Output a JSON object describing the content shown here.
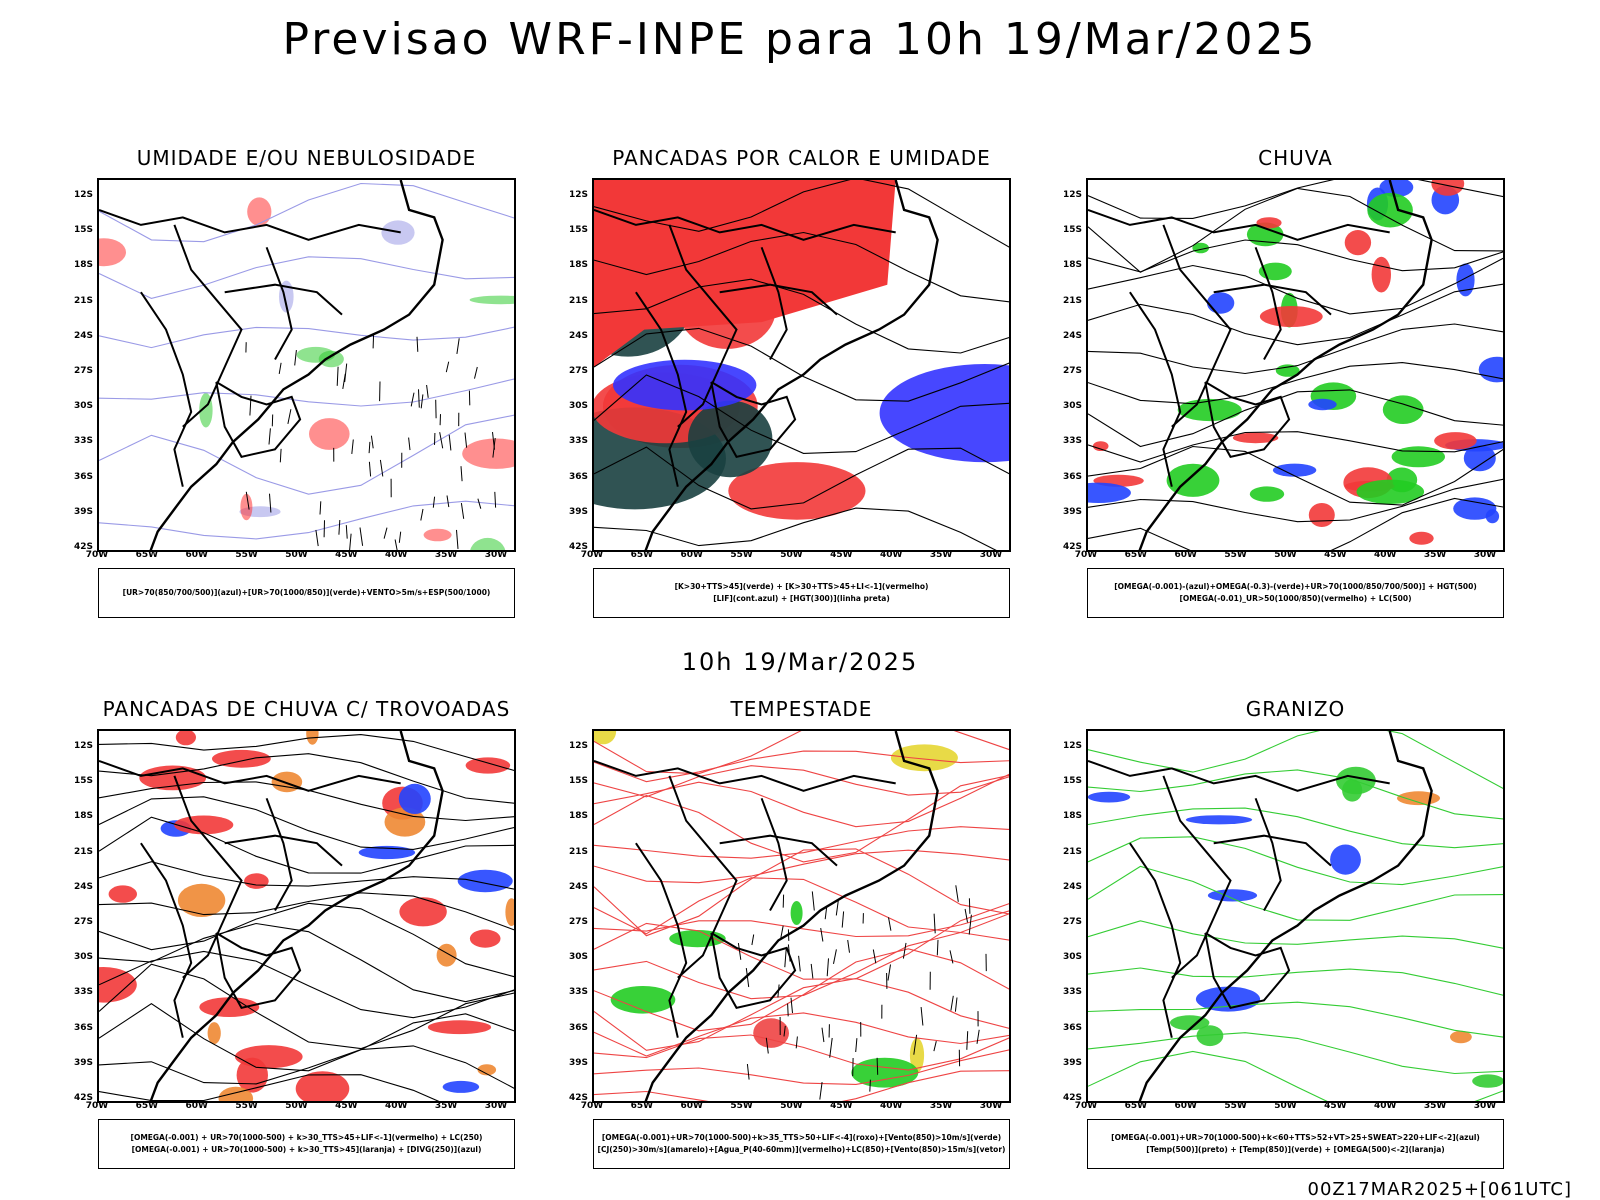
{
  "header": {
    "title": "Previsao WRF-INPE  para 10h 19/Mar/2025"
  },
  "middle_title": "10h 19/Mar/2025",
  "footer": "00Z17MAR2025+[061UTC]",
  "axes": {
    "lat_labels": [
      "12S",
      "15S",
      "18S",
      "21S",
      "24S",
      "27S",
      "30S",
      "33S",
      "36S",
      "39S",
      "42S"
    ],
    "lon_labels": [
      "70W",
      "65W",
      "60W",
      "55W",
      "50W",
      "45W",
      "40W",
      "35W",
      "30W"
    ]
  },
  "panels": [
    {
      "title": "UMIDADE E/OU NEBULOSIDADE",
      "caption": [
        "[UR>70(850/700/500)](azul)+[UR>70(1000/850)](verde)+VENTO>5m/s+ESP(500/1000)"
      ],
      "colors": [
        "#9a9ae6",
        "#33cc33",
        "#ff3333",
        "#000000"
      ]
    },
    {
      "title": "PANCADAS POR CALOR E UMIDADE",
      "caption": [
        "[K>30+TTS>45](verde) + [K>30+TTS>45+LI<-1](vermelho)",
        "[LIF](cont.azul) + [HGT(300)](linha preta)"
      ],
      "colors": [
        "#f23838",
        "#1a4040",
        "#3333ff",
        "#000000"
      ]
    },
    {
      "title": "CHUVA",
      "caption": [
        "[OMEGA(-0.001)-(azul)+OMEGA(-0.3)-(verde)+UR>70(1000/850/700/500)] + HGT(500)",
        "[OMEGA(-0.01)_UR>50(1000/850)(vermelho) + LC(500)"
      ],
      "colors": [
        "#2244ff",
        "#22cc22",
        "#f23838",
        "#000000"
      ]
    },
    {
      "title": "PANCADAS DE CHUVA C/ TROVOADAS",
      "caption": [
        "[OMEGA(-0.001) + UR>70(1000-500) + k>30_TTS>45+LIF<-1](vermelho) + LC(250)",
        "[OMEGA(-0.001) + UR>70(1000-500) + k>30_TTS>45](laranja) + [DIVG(250)](azul)"
      ],
      "colors": [
        "#f23838",
        "#ee8833",
        "#2244ff",
        "#000000"
      ]
    },
    {
      "title": "TEMPESTADE",
      "caption": [
        "[OMEGA(-0.001)+UR>70(1000-500)+k>35_TTS>50+LIF<-4](roxo)+[Vento(850)>10m/s](verde)",
        "[CJ(250)>30m/s](amarelo)+[Agua_P(40-60mm)](vermelho)+LC(850)+[Vento(850)>15m/s](vetor)"
      ],
      "colors": [
        "#22cc22",
        "#e6d633",
        "#ee4444",
        "#aa22cc"
      ]
    },
    {
      "title": "GRANIZO",
      "caption": [
        "[OMEGA(-0.001)+UR>70(1000-500)+k<60+TTS>52+VT>25+SWEAT>220+LIF<-2](azul)",
        "[Temp(500)](preto) + [Temp(850)](verde) + [OMEGA(500)<-2](laranja)"
      ],
      "colors": [
        "#33cc33",
        "#2244ff",
        "#ee8833",
        "#000000"
      ]
    }
  ]
}
